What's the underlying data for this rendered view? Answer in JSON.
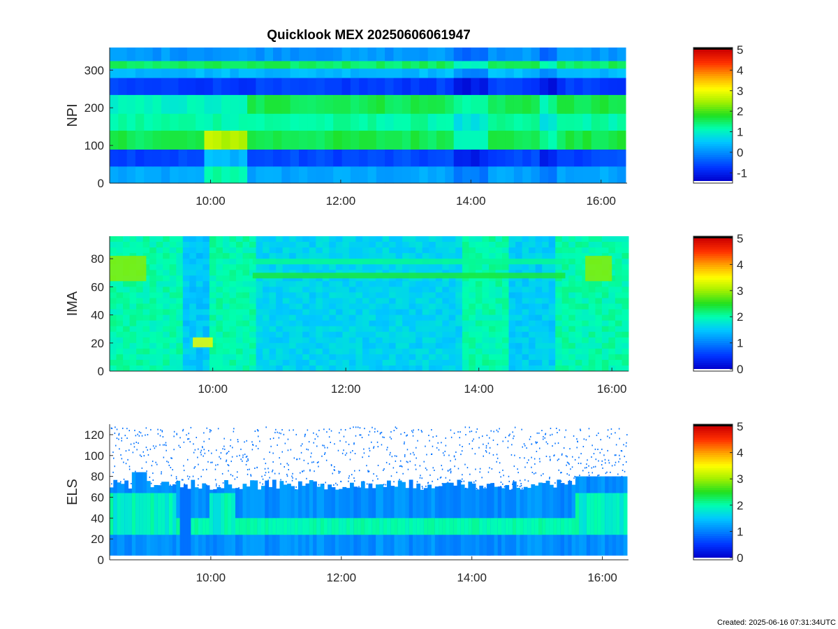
{
  "figure": {
    "title": "Quicklook MEX 20250606061947",
    "footer": "Created: 2025-06-16 07:31:34UTC"
  },
  "colors": {
    "colormap": [
      "#ffffff",
      "#0000cc",
      "#0033ff",
      "#0080ff",
      "#00c8ff",
      "#00ffb0",
      "#20e020",
      "#a0f000",
      "#ffff00",
      "#ffa000",
      "#ff3000",
      "#cc0000",
      "#000000"
    ]
  },
  "chart_data": [
    {
      "type": "heatmap",
      "ylabel": "NPI",
      "x_range_hours": [
        8.45,
        16.4
      ],
      "xticks": [
        10,
        12,
        14,
        16
      ],
      "xtick_labels": [
        "10:00",
        "12:00",
        "14:00",
        "16:00"
      ],
      "ylim": [
        0,
        360
      ],
      "yticks": [
        0,
        100,
        200,
        300
      ],
      "ytick_labels": [
        "0",
        "100",
        "200",
        "300"
      ],
      "colorbar": {
        "range": [
          -1.4,
          5
        ],
        "ticks": [
          -1,
          0,
          1,
          2,
          3,
          4,
          5
        ],
        "tick_labels": [
          "-1",
          "0",
          "1",
          "2",
          "3",
          "4",
          "5"
        ]
      },
      "row_bands": [
        {
          "y": [
            0,
            45
          ],
          "value": 0.2
        },
        {
          "y": [
            45,
            90
          ],
          "value": -0.6
        },
        {
          "y": [
            90,
            140
          ],
          "value": 1.6
        },
        {
          "y": [
            140,
            185
          ],
          "value": 1.2
        },
        {
          "y": [
            185,
            235
          ],
          "value": 1.6
        },
        {
          "y": [
            235,
            280
          ],
          "value": -0.7
        },
        {
          "y": [
            280,
            305
          ],
          "value": 0.4
        },
        {
          "y": [
            305,
            325
          ],
          "value": 1.5
        },
        {
          "y": [
            325,
            360
          ],
          "value": 0.1
        }
      ]
    },
    {
      "type": "heatmap",
      "ylabel": "IMA",
      "x_range_hours": [
        8.45,
        16.25
      ],
      "xticks": [
        10,
        12,
        14,
        16
      ],
      "xtick_labels": [
        "10:00",
        "12:00",
        "14:00",
        "16:00"
      ],
      "ylim": [
        0,
        96
      ],
      "yticks": [
        0,
        20,
        40,
        60,
        80
      ],
      "ytick_labels": [
        "0",
        "20",
        "40",
        "60",
        "80"
      ],
      "colorbar": {
        "range": [
          0,
          5
        ],
        "ticks": [
          0,
          1,
          2,
          3,
          4,
          5
        ],
        "tick_labels": [
          "0",
          "1",
          "2",
          "3",
          "4",
          "5"
        ]
      },
      "features": [
        {
          "kind": "band",
          "x": [
            8.45,
            9.0
          ],
          "y": [
            64,
            82
          ],
          "value": 2.9
        },
        {
          "kind": "band",
          "x": [
            10.6,
            15.3
          ],
          "y": [
            66,
            70
          ],
          "value": 2.4
        },
        {
          "kind": "band",
          "x": [
            10.6,
            15.3
          ],
          "y": [
            76,
            80
          ],
          "value": 2.1
        },
        {
          "kind": "band",
          "x": [
            9.7,
            10.0
          ],
          "y": [
            17,
            24
          ],
          "value": 3.4
        },
        {
          "kind": "band",
          "x": [
            15.6,
            16.0
          ],
          "y": [
            64,
            82
          ],
          "value": 2.9
        }
      ]
    },
    {
      "type": "heatmap",
      "ylabel": "ELS",
      "x_range_hours": [
        8.45,
        16.4
      ],
      "xticks": [
        10,
        12,
        14,
        16
      ],
      "xtick_labels": [
        "10:00",
        "12:00",
        "14:00",
        "16:00"
      ],
      "ylim": [
        0,
        130
      ],
      "yticks": [
        0,
        20,
        40,
        60,
        80,
        100,
        120
      ],
      "ytick_labels": [
        "0",
        "20",
        "40",
        "60",
        "80",
        "100",
        "120"
      ],
      "colorbar": {
        "range": [
          0,
          5
        ],
        "ticks": [
          0,
          1,
          2,
          3,
          4,
          5
        ],
        "tick_labels": [
          "0",
          "1",
          "2",
          "3",
          "4",
          "5"
        ]
      },
      "core_band": {
        "y": [
          24,
          40
        ],
        "value": 2.0
      }
    }
  ]
}
